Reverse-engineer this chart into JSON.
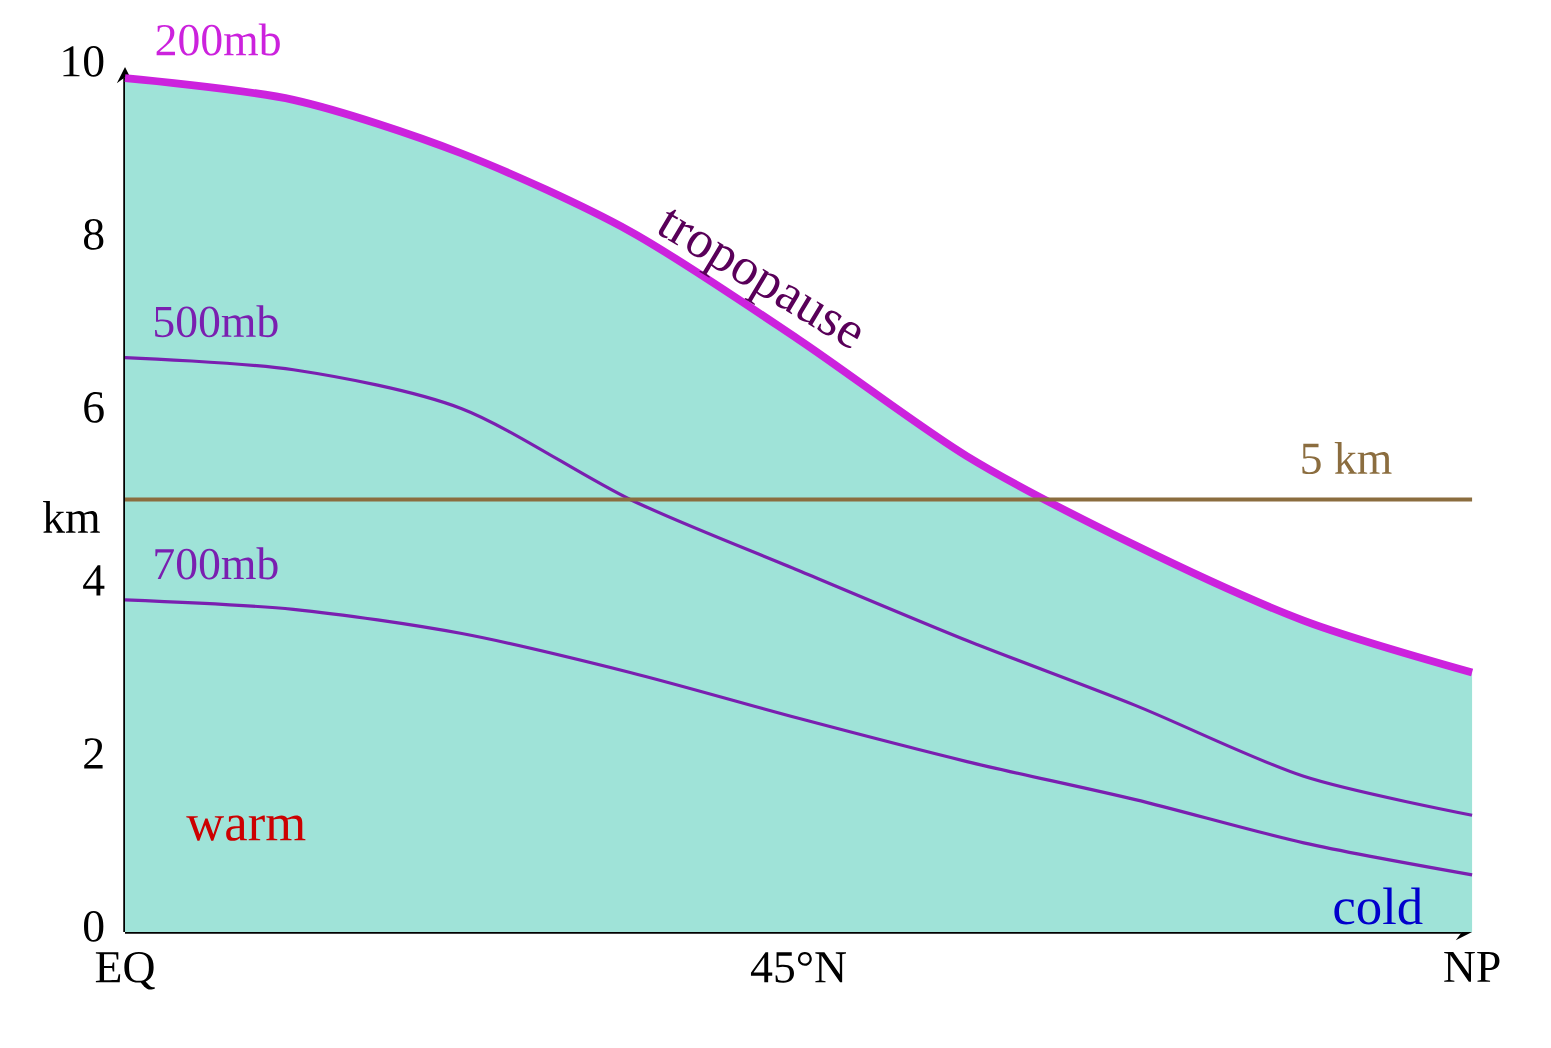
{
  "chart_data": {
    "type": "line",
    "ylabel": "km",
    "ylim": [
      0,
      10
    ],
    "categories": [
      "EQ",
      null,
      null,
      null,
      "45°N",
      null,
      null,
      null,
      "NP"
    ],
    "yticks": [
      0,
      2,
      4,
      6,
      8,
      10
    ],
    "series": [
      {
        "type": "area",
        "color": "#9fe3d8",
        "values": [
          9.87,
          9.62,
          9.0,
          8.1,
          6.85,
          5.5,
          4.47,
          3.6,
          3.0
        ]
      },
      {
        "name": "200mb",
        "color": "#cc22dd",
        "values": [
          9.87,
          9.62,
          9.0,
          8.1,
          6.85,
          5.5,
          4.47,
          3.6,
          3.0
        ]
      },
      {
        "name": "500mb",
        "color": "#7a1fb0",
        "values": [
          6.64,
          6.5,
          6.05,
          5.0,
          4.18,
          3.37,
          2.62,
          1.8,
          1.35
        ]
      },
      {
        "name": "700mb",
        "color": "#7a1fb0",
        "values": [
          3.84,
          3.73,
          3.45,
          3.0,
          2.47,
          1.97,
          1.53,
          1.03,
          0.66
        ]
      }
    ],
    "ref_lines": [
      {
        "axis": "y",
        "value": 5,
        "label": "5 km",
        "color": "#8b6d3f"
      }
    ],
    "annotations": [
      "tropopause",
      "warm",
      "cold"
    ],
    "grid": false,
    "line_style": "solid"
  }
}
